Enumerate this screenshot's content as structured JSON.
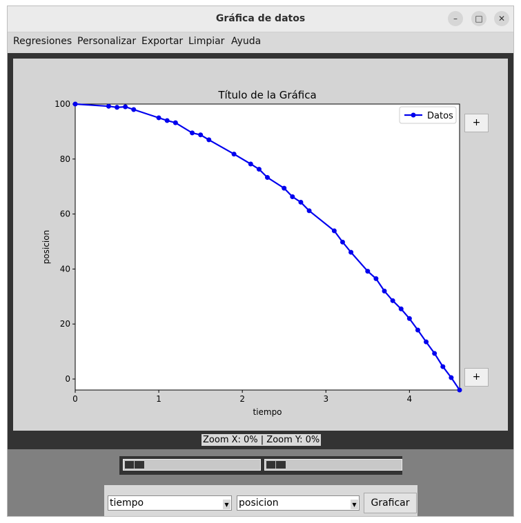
{
  "window": {
    "title": "Gráfica de datos",
    "controls": {
      "minimize": "–",
      "maximize": "□",
      "close": "✕"
    }
  },
  "menubar": {
    "items": [
      "Regresiones",
      "Personalizar",
      "Exportar",
      "Limpiar",
      "Ayuda"
    ]
  },
  "plot": {
    "zoom_status": "Zoom X: 0% | Zoom Y: 0%",
    "zoom_in_y_label": "+",
    "zoom_in_x_label": "+"
  },
  "controls": {
    "x_select_value": "tiempo",
    "y_select_value": "posicion",
    "graph_button": "Graficar"
  },
  "chart_data": {
    "type": "line",
    "title": "Título de la Gráfica",
    "xlabel": "tiempo",
    "ylabel": "posicion",
    "xlim": [
      0,
      4.6
    ],
    "ylim": [
      -4,
      100
    ],
    "x_ticks": [
      0,
      1,
      2,
      3,
      4
    ],
    "y_ticks": [
      0,
      20,
      40,
      60,
      80,
      100
    ],
    "legend_position": "top-right",
    "color": "#0000ee",
    "series": [
      {
        "name": "Datos",
        "points": [
          [
            0,
            100
          ],
          [
            0.4,
            99.2
          ],
          [
            0.5,
            98.8
          ],
          [
            0.6,
            99.0
          ],
          [
            0.7,
            98.0
          ],
          [
            1.0,
            95.0
          ],
          [
            1.1,
            94.0
          ],
          [
            1.2,
            93.2
          ],
          [
            1.4,
            89.5
          ],
          [
            1.5,
            88.8
          ],
          [
            1.6,
            87.0
          ],
          [
            1.9,
            81.8
          ],
          [
            2.1,
            78.2
          ],
          [
            2.2,
            76.3
          ],
          [
            2.3,
            73.3
          ],
          [
            2.5,
            69.4
          ],
          [
            2.6,
            66.3
          ],
          [
            2.7,
            64.3
          ],
          [
            2.8,
            61.2
          ],
          [
            3.1,
            53.9
          ],
          [
            3.2,
            49.8
          ],
          [
            3.3,
            46.1
          ],
          [
            3.5,
            39.2
          ],
          [
            3.6,
            36.5
          ],
          [
            3.7,
            32.0
          ],
          [
            3.8,
            28.5
          ],
          [
            3.9,
            25.5
          ],
          [
            4.0,
            22.0
          ],
          [
            4.1,
            17.8
          ],
          [
            4.2,
            13.5
          ],
          [
            4.3,
            9.3
          ],
          [
            4.4,
            4.5
          ],
          [
            4.5,
            0.5
          ],
          [
            4.6,
            -4.0
          ]
        ]
      }
    ]
  }
}
